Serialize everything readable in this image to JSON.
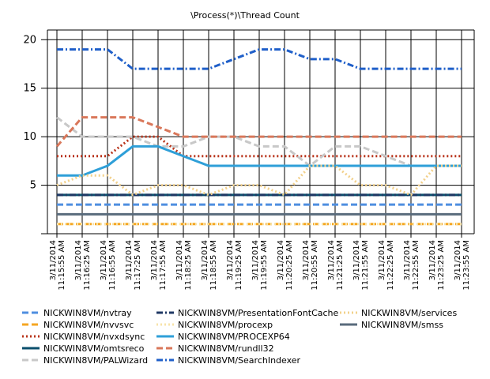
{
  "chart_data": {
    "type": "line",
    "title": "\\Process(*)\\Thread Count",
    "categories": [
      [
        "3/11/2014",
        "11:15:55 AM"
      ],
      [
        "3/11/2014",
        "11:16:25 AM"
      ],
      [
        "3/11/2014",
        "11:16:55 AM"
      ],
      [
        "3/11/2014",
        "11:17:25 AM"
      ],
      [
        "3/11/2014",
        "11:17:55 AM"
      ],
      [
        "3/11/2014",
        "11:18:25 AM"
      ],
      [
        "3/11/2014",
        "11:18:55 AM"
      ],
      [
        "3/11/2014",
        "11:19:25 AM"
      ],
      [
        "3/11/2014",
        "11:19:55 AM"
      ],
      [
        "3/11/2014",
        "11:20:25 AM"
      ],
      [
        "3/11/2014",
        "11:20:55 AM"
      ],
      [
        "3/11/2014",
        "11:21:25 AM"
      ],
      [
        "3/11/2014",
        "11:21:55 AM"
      ],
      [
        "3/11/2014",
        "11:22:25 AM"
      ],
      [
        "3/11/2014",
        "11:22:55 AM"
      ],
      [
        "3/11/2014",
        "11:23:25 AM"
      ],
      [
        "3/11/2014",
        "11:23:55 AM"
      ]
    ],
    "ylim": [
      0,
      21
    ],
    "yticks": [
      5,
      10,
      15,
      20
    ],
    "grid": true,
    "series": [
      {
        "name": "NICKWIN8VM/nvtray",
        "color": "#4f8fe0",
        "dash": "dash",
        "values": [
          3,
          3,
          3,
          3,
          3,
          3,
          3,
          3,
          3,
          3,
          3,
          3,
          3,
          3,
          3,
          3,
          3
        ]
      },
      {
        "name": "NICKWIN8VM/nvvsvc",
        "color": "#f5a623",
        "dash": "dash",
        "values": [
          1,
          1,
          1,
          1,
          1,
          1,
          1,
          1,
          1,
          1,
          1,
          1,
          1,
          1,
          1,
          1,
          1
        ]
      },
      {
        "name": "NICKWIN8VM/nvxdsync",
        "color": "#b8341b",
        "dash": "dot",
        "values": [
          8,
          8,
          8,
          10,
          10,
          8,
          8,
          8,
          8,
          8,
          8,
          8,
          8,
          8,
          8,
          8,
          8
        ]
      },
      {
        "name": "NICKWIN8VM/omtsreco",
        "color": "#0b4f6c",
        "dash": "solid",
        "values": [
          4,
          4,
          4,
          4,
          4,
          4,
          4,
          4,
          4,
          4,
          4,
          4,
          4,
          4,
          4,
          4,
          4
        ]
      },
      {
        "name": "NICKWIN8VM/PALWizard",
        "color": "#c8c8c8",
        "dash": "dash",
        "values": [
          12,
          10,
          10,
          10,
          9,
          9,
          10,
          10,
          9,
          9,
          7,
          9,
          9,
          8,
          7,
          7,
          7
        ]
      },
      {
        "name": "NICKWIN8VM/PresentationFontCache",
        "color": "#1f3864",
        "dash": "dashdot",
        "values": [
          4,
          4,
          4,
          4,
          4,
          4,
          4,
          4,
          4,
          4,
          4,
          4,
          4,
          4,
          4,
          4,
          4
        ]
      },
      {
        "name": "NICKWIN8VM/procexp",
        "color": "#f7e3a8",
        "dash": "dot",
        "values": [
          1,
          1,
          1,
          1,
          1,
          1,
          1,
          1,
          1,
          1,
          1,
          1,
          1,
          1,
          1,
          1,
          1
        ]
      },
      {
        "name": "NICKWIN8VM/PROCEXP64",
        "color": "#2e9fd8",
        "dash": "solid",
        "values": [
          6,
          6,
          7,
          9,
          9,
          8,
          7,
          7,
          7,
          7,
          7,
          7,
          7,
          7,
          7,
          7,
          7
        ]
      },
      {
        "name": "NICKWIN8VM/rundll32",
        "color": "#d9775a",
        "dash": "dash",
        "values": [
          9,
          12,
          12,
          12,
          11,
          10,
          10,
          10,
          10,
          10,
          10,
          10,
          10,
          10,
          10,
          10,
          10
        ]
      },
      {
        "name": "NICKWIN8VM/SearchIndexer",
        "color": "#1f5fc9",
        "dash": "dashdot",
        "values": [
          19,
          19,
          19,
          17,
          17,
          17,
          17,
          18,
          19,
          19,
          18,
          18,
          17,
          17,
          17,
          17,
          17
        ]
      },
      {
        "name": "NICKWIN8VM/services",
        "color": "#f2d08a",
        "dash": "dot",
        "values": [
          5,
          6,
          6,
          4,
          5,
          5,
          4,
          5,
          5,
          4,
          7,
          7,
          5,
          5,
          4,
          7,
          7
        ]
      },
      {
        "name": "NICKWIN8VM/smss",
        "color": "#596b7c",
        "dash": "solid",
        "values": [
          2,
          2,
          2,
          2,
          2,
          2,
          2,
          2,
          2,
          2,
          2,
          2,
          2,
          2,
          2,
          2,
          2
        ]
      }
    ]
  }
}
